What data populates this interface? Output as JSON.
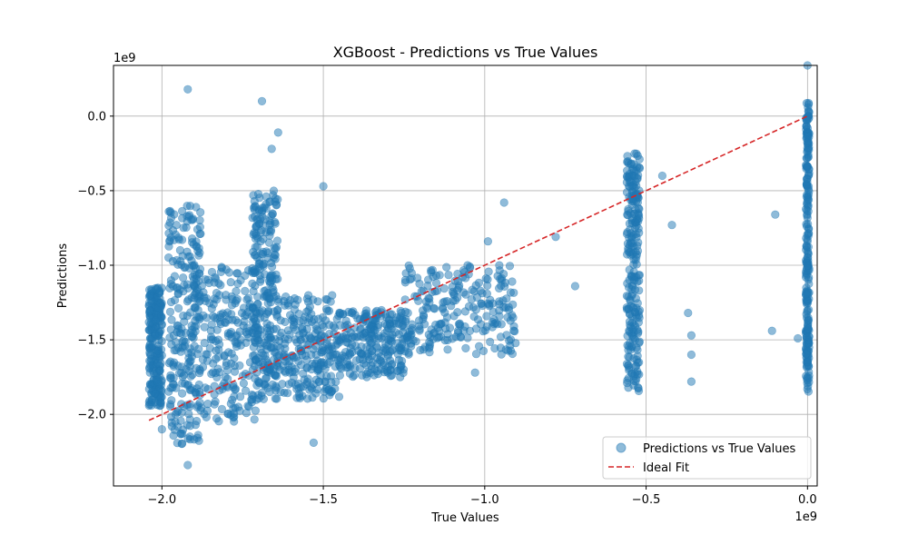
{
  "chart_data": {
    "type": "scatter",
    "title": "XGBoost - Predictions vs True Values",
    "xlabel": "True Values",
    "ylabel": "Predictions",
    "x_offset_label": "1e9",
    "y_offset_label": "1e9",
    "xlim": [
      -2.15,
      0.03
    ],
    "ylim": [
      -2.48,
      0.34
    ],
    "xticks": [
      -2.0,
      -1.5,
      -1.0,
      -0.5,
      0.0
    ],
    "xtick_labels": [
      "−2.0",
      "−1.5",
      "−1.0",
      "−0.5",
      "0.0"
    ],
    "yticks": [
      -2.0,
      -1.5,
      -1.0,
      -0.5,
      0.0
    ],
    "ytick_labels": [
      "−2.0",
      "−1.5",
      "−1.0",
      "−0.5",
      "0.0"
    ],
    "grid": true,
    "legend_position": "lower-right",
    "series": [
      {
        "name": "Predictions vs True Values",
        "kind": "scatter",
        "color": "#1f77b4",
        "alpha": 0.5,
        "clusters": [
          {
            "x": [
              -2.04,
              -2.0
            ],
            "y": [
              -1.95,
              -1.15
            ]
          },
          {
            "x": [
              -1.98,
              -1.88
            ],
            "y": [
              -2.2,
              -0.6
            ]
          },
          {
            "x": [
              -1.9,
              -1.7
            ],
            "y": [
              -2.05,
              -1.0
            ]
          },
          {
            "x": [
              -1.72,
              -1.64
            ],
            "y": [
              -1.9,
              -0.5
            ]
          },
          {
            "x": [
              -1.65,
              -1.45
            ],
            "y": [
              -1.9,
              -1.2
            ]
          },
          {
            "x": [
              -1.45,
              -1.25
            ],
            "y": [
              -1.75,
              -1.3
            ]
          },
          {
            "x": [
              -1.25,
              -0.9
            ],
            "y": [
              -1.6,
              -1.0
            ]
          },
          {
            "x": [
              -0.56,
              -0.52
            ],
            "y": [
              -1.85,
              -0.25
            ]
          },
          {
            "x": [
              -0.005,
              0.005
            ],
            "y": [
              -1.85,
              0.1
            ]
          }
        ],
        "points": [
          {
            "x": -1.92,
            "y": 0.18
          },
          {
            "x": -1.69,
            "y": 0.1
          },
          {
            "x": -1.64,
            "y": -0.11
          },
          {
            "x": -1.66,
            "y": -0.22
          },
          {
            "x": -1.92,
            "y": -2.34
          },
          {
            "x": -1.5,
            "y": -0.47
          },
          {
            "x": -0.99,
            "y": -0.84
          },
          {
            "x": -0.94,
            "y": -0.58
          },
          {
            "x": -0.78,
            "y": -0.81
          },
          {
            "x": -0.72,
            "y": -1.14
          },
          {
            "x": -0.55,
            "y": -0.76
          },
          {
            "x": -0.45,
            "y": -0.4
          },
          {
            "x": -0.42,
            "y": -0.73
          },
          {
            "x": -0.37,
            "y": -1.32
          },
          {
            "x": -0.36,
            "y": -1.47
          },
          {
            "x": -0.36,
            "y": -1.6
          },
          {
            "x": -0.36,
            "y": -1.78
          },
          {
            "x": -0.1,
            "y": -0.66
          },
          {
            "x": -0.11,
            "y": -1.44
          },
          {
            "x": -0.03,
            "y": -1.49
          },
          {
            "x": 0.0,
            "y": 0.34
          },
          {
            "x": -1.53,
            "y": -2.19
          },
          {
            "x": -1.03,
            "y": -1.72
          },
          {
            "x": -2.0,
            "y": -2.1
          }
        ]
      },
      {
        "name": "Ideal Fit",
        "kind": "line",
        "style": "dashed",
        "color": "#d62728",
        "x": [
          -2.04,
          0.0
        ],
        "y": [
          -2.04,
          0.0
        ]
      }
    ]
  }
}
